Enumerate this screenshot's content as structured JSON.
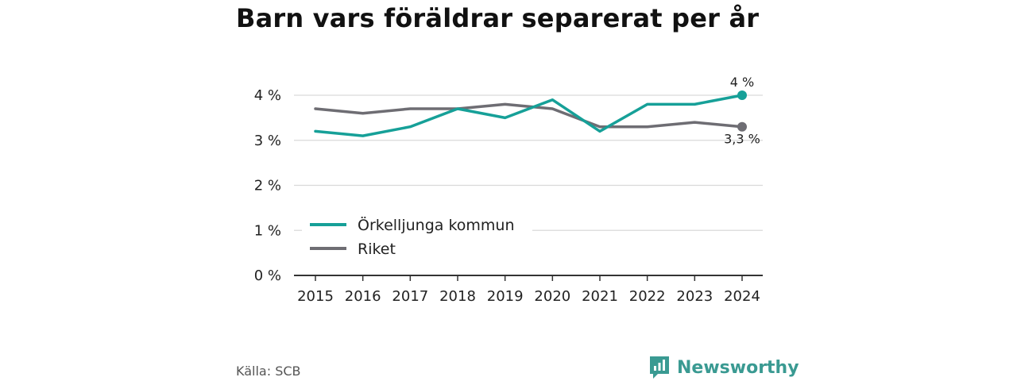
{
  "title": "Barn vars föräldrar separerat per år",
  "source": "Källa: SCB",
  "brand": "Newsworthy",
  "colors": {
    "primary": "#16a098",
    "secondary": "#6e6d73",
    "grid": "#d9d9d9",
    "axis": "#333333",
    "brand": "#3a9a92"
  },
  "chart_data": {
    "type": "line",
    "title": "Barn vars föräldrar separerat per år",
    "x": [
      "2015",
      "2016",
      "2017",
      "2018",
      "2019",
      "2020",
      "2021",
      "2022",
      "2023",
      "2024"
    ],
    "ylim": [
      0,
      4
    ],
    "yticks": [
      0,
      1,
      2,
      3,
      4
    ],
    "ytick_labels": [
      "0 %",
      "1 %",
      "2 %",
      "3 %",
      "4 %"
    ],
    "grid": true,
    "legend_position": "middle-left",
    "series": [
      {
        "name": "Örkelljunga kommun",
        "color": "#16a098",
        "values": [
          3.2,
          3.1,
          3.3,
          3.7,
          3.5,
          3.9,
          3.2,
          3.8,
          3.8,
          4.0
        ],
        "end_label": "4 %"
      },
      {
        "name": "Riket",
        "color": "#6e6d73",
        "values": [
          3.7,
          3.6,
          3.7,
          3.7,
          3.8,
          3.7,
          3.3,
          3.3,
          3.4,
          3.3
        ],
        "end_label": "3,3 %"
      }
    ]
  }
}
